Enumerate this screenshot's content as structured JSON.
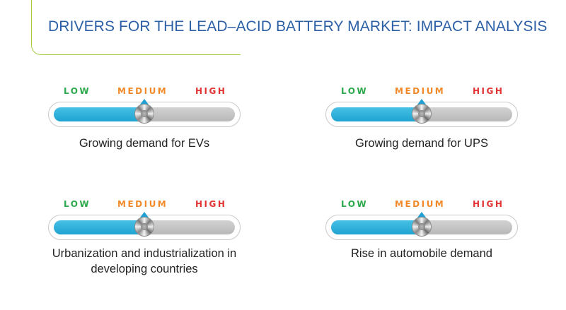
{
  "title": "DRIVERS FOR THE LEAD–ACID BATTERY MARKET: IMPACT ANALYSIS",
  "scale": {
    "low": "LOW",
    "medium": "MEDIUM",
    "high": "HIGH"
  },
  "colors": {
    "low": "#2aa84a",
    "medium": "#f08a2b",
    "high": "#e23232",
    "title": "#2b5fa6",
    "fill": "#1ea3d2",
    "accent": "#9ecb3c"
  },
  "drivers": [
    {
      "caption": "Growing demand for EVs",
      "impact_level": 0.5
    },
    {
      "caption": "Growing demand for UPS",
      "impact_level": 0.5
    },
    {
      "caption": "Urbanization and industrialization in developing countries",
      "impact_level": 0.5
    },
    {
      "caption": "Rise in automobile demand",
      "impact_level": 0.5
    }
  ]
}
